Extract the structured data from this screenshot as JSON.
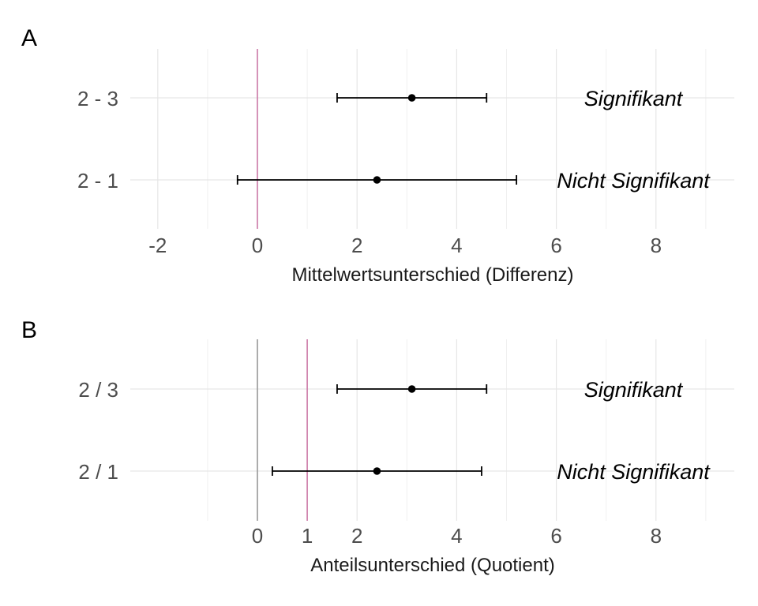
{
  "chart_data": [
    {
      "panel": "A",
      "type": "errorbar",
      "xlabel": "Mittelwertsunterschied (Differenz)",
      "xticks": [
        -2,
        0,
        2,
        4,
        6,
        8
      ],
      "xlim": [
        -2.4,
        9.6
      ],
      "reference_line": 0,
      "reference_color": "#cc79a7",
      "rows": [
        {
          "label": "2 - 3",
          "estimate": 3.1,
          "lower": 1.6,
          "upper": 4.6,
          "annotation": "Signifikant"
        },
        {
          "label": "2 - 1",
          "estimate": 2.4,
          "lower": -0.4,
          "upper": 5.2,
          "annotation": "Nicht Signifikant"
        }
      ]
    },
    {
      "panel": "B",
      "type": "errorbar",
      "xlabel": "Anteilsunterschied (Quotient)",
      "xticks": [
        0,
        1,
        2,
        4,
        6,
        8
      ],
      "xlim": [
        -2.4,
        9.6
      ],
      "zero_line": 0,
      "zero_color": "#999999",
      "reference_line": 1,
      "reference_color": "#cc79a7",
      "rows": [
        {
          "label": "2 / 3",
          "estimate": 3.1,
          "lower": 1.6,
          "upper": 4.6,
          "annotation": "Signifikant"
        },
        {
          "label": "2 / 1",
          "estimate": 2.4,
          "lower": 0.3,
          "upper": 4.5,
          "annotation": "Nicht Signifikant"
        }
      ]
    }
  ]
}
